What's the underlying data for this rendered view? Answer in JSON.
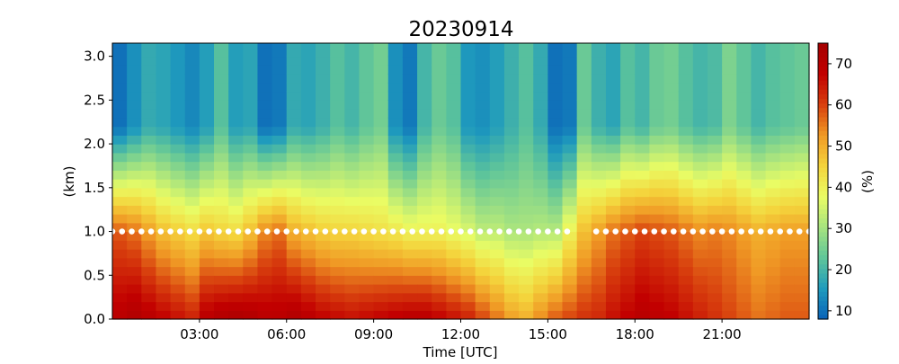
{
  "chart_data": {
    "type": "heatmap",
    "title": "20230914",
    "xlabel": "Time [UTC]",
    "ylabel": "(km)",
    "colorbar_label": "(%)",
    "x_range_hours": [
      0,
      24
    ],
    "y_range_km": [
      0,
      3.15
    ],
    "x_ticks": [
      {
        "hour": 3,
        "label": "03:00"
      },
      {
        "hour": 6,
        "label": "06:00"
      },
      {
        "hour": 9,
        "label": "09:00"
      },
      {
        "hour": 12,
        "label": "12:00"
      },
      {
        "hour": 15,
        "label": "15:00"
      },
      {
        "hour": 18,
        "label": "18:00"
      },
      {
        "hour": 21,
        "label": "21:00"
      }
    ],
    "y_ticks": [
      {
        "value": 0.0,
        "label": "0.0"
      },
      {
        "value": 0.5,
        "label": "0.5"
      },
      {
        "value": 1.0,
        "label": "1.0"
      },
      {
        "value": 1.5,
        "label": "1.5"
      },
      {
        "value": 2.0,
        "label": "2.0"
      },
      {
        "value": 2.5,
        "label": "2.5"
      },
      {
        "value": 3.0,
        "label": "3.0"
      }
    ],
    "colorbar": {
      "min": 8,
      "max": 75,
      "ticks": [
        {
          "value": 10,
          "label": "10"
        },
        {
          "value": 20,
          "label": "20"
        },
        {
          "value": 30,
          "label": "30"
        },
        {
          "value": 40,
          "label": "40"
        },
        {
          "value": 50,
          "label": "50"
        },
        {
          "value": 60,
          "label": "60"
        },
        {
          "value": 70,
          "label": "70"
        }
      ],
      "colormap": [
        "#0a62b8",
        "#1f9bbd",
        "#5fc59a",
        "#a6e37f",
        "#eafc64",
        "#f4d43c",
        "#f09a25",
        "#d8400e",
        "#c20000",
        "#a50000"
      ]
    },
    "marker_series": {
      "marker": "white-dot",
      "height_km": 1.0,
      "interval_minutes": 20,
      "gaps_hours": [
        [
          16.0,
          16.6
        ]
      ]
    },
    "profile_hours": [
      0.0,
      0.5,
      1.0,
      1.5,
      2.0,
      2.5,
      3.0,
      3.5,
      4.0,
      4.5,
      5.0,
      5.5,
      6.0,
      6.5,
      7.0,
      7.5,
      8.0,
      8.5,
      9.0,
      9.5,
      10.0,
      10.5,
      11.0,
      11.5,
      12.0,
      12.5,
      13.0,
      13.5,
      14.0,
      14.5,
      15.0,
      15.5,
      16.0,
      16.5,
      17.0,
      17.5,
      18.0,
      18.5,
      19.0,
      19.5,
      20.0,
      20.5,
      21.0,
      21.5,
      22.0,
      22.5,
      23.0,
      23.5
    ],
    "upper_layer_percent": [
      10,
      14,
      18,
      17,
      15,
      13,
      16,
      22,
      16,
      17,
      10,
      11,
      18,
      17,
      19,
      22,
      20,
      23,
      25,
      14,
      11,
      20,
      24,
      22,
      15,
      14,
      16,
      19,
      22,
      18,
      10,
      11,
      24,
      19,
      17,
      22,
      20,
      24,
      25,
      22,
      20,
      21,
      26,
      23,
      20,
      22,
      23,
      24
    ],
    "near_1km_percent": [
      58,
      56,
      52,
      48,
      46,
      44,
      47,
      45,
      44,
      48,
      54,
      56,
      50,
      48,
      46,
      45,
      45,
      44,
      43,
      42,
      40,
      40,
      40,
      38,
      36,
      33,
      33,
      31,
      31,
      32,
      32,
      40,
      48,
      52,
      56,
      58,
      60,
      59,
      58,
      56,
      54,
      55,
      54,
      52,
      50,
      51,
      52,
      52
    ],
    "surface_percent": [
      70,
      72,
      70,
      68,
      66,
      64,
      70,
      72,
      73,
      72,
      70,
      70,
      72,
      70,
      68,
      67,
      66,
      67,
      68,
      69,
      70,
      70,
      68,
      66,
      64,
      60,
      56,
      52,
      50,
      54,
      58,
      60,
      62,
      63,
      66,
      68,
      70,
      69,
      68,
      66,
      64,
      62,
      60,
      58,
      56,
      57,
      58,
      58
    ]
  }
}
